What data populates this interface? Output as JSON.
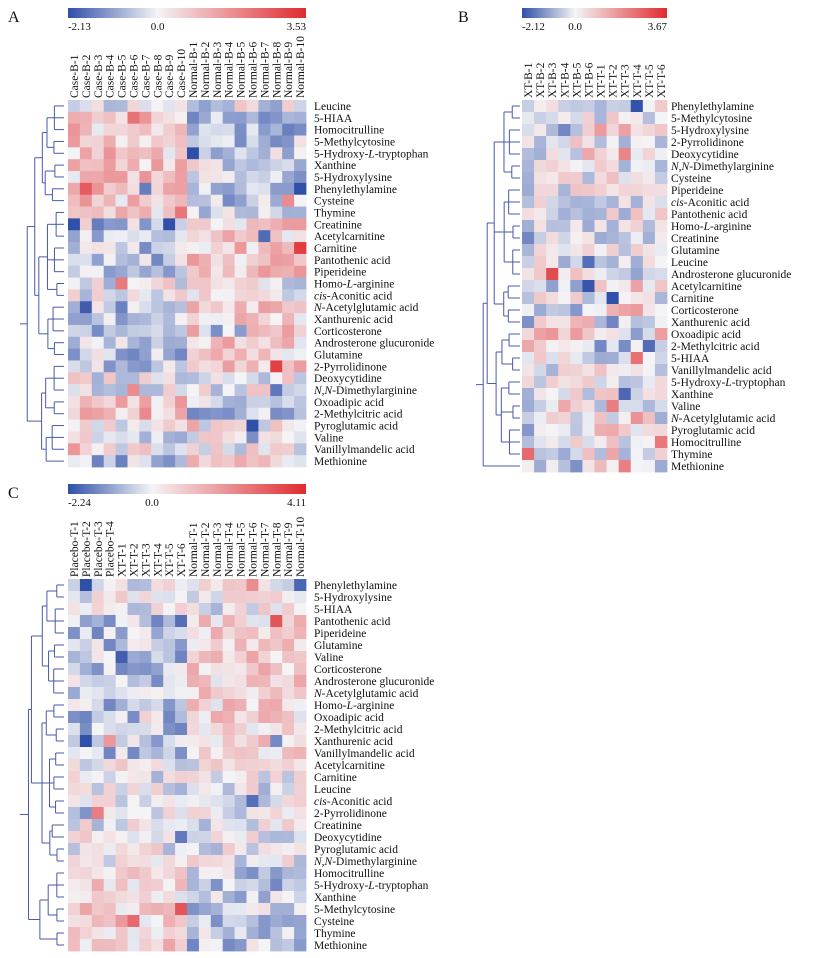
{
  "colors": {
    "low": "#2f4fa8",
    "mid": "#f4f4f6",
    "high": "#e02a2e",
    "dendrogram": "#4a5aa8"
  },
  "chart_data": [
    {
      "type": "heatmap",
      "panel_label": "A",
      "scale": {
        "min": -2.13,
        "mid": 0.0,
        "max": 3.53,
        "min_label": "-2.13",
        "mid_label": "0.0",
        "max_label": "3.53"
      },
      "columns": [
        "Case-B-1",
        "Case-B-2",
        "Case-B-3",
        "Case-B-4",
        "Case-B-5",
        "Case-B-6",
        "Case-B-7",
        "Case-B-8",
        "Case-B-9",
        "Case-B-10",
        "Normal-B-1",
        "Normal-B-2",
        "Normal-B-3",
        "Normal-B-4",
        "Normal-B-5",
        "Normal-B-6",
        "Normal-B-7",
        "Normal-B-8",
        "Normal-B-9",
        "Normal-B-10"
      ],
      "rows": [
        "Leucine",
        "5-HIAA",
        "Homocitrulline",
        "5-Methylcytosine",
        "5-Hydroxy-L-tryptophan",
        "Xanthine",
        "5-Hydroxylysine",
        "Phenylethylamine",
        "Cysteine",
        "Thymine",
        "Creatinine",
        "Acetylcarnitine",
        "Carnitine",
        "Pantothenic acid",
        "Piperideine",
        "Homo-L-arginine",
        "cis-Aconitic acid",
        "N-Acetylglutamic acid",
        "Xanthurenic acid",
        "Corticosterone",
        "Androsterone glucuronide",
        "Glutamine",
        "2-Pyrrolidinone",
        "Deoxycytidine",
        "N,N-Dimethylarginine",
        "Oxoadipic acid",
        "2-Methylcitric acid",
        "Pyroglutamic acid",
        "Valine",
        "Vanillylmandelic acid",
        "Methionine"
      ],
      "pattern": {
        "group_split": 10,
        "seed": 11,
        "up_in_first": [
          "5-HIAA",
          "Homocitrulline",
          "5-Methylcytosine",
          "5-Hydroxy-L-tryptophan",
          "Xanthine",
          "5-Hydroxylysine",
          "Phenylethylamine",
          "Cysteine",
          "Thymine",
          "Oxoadipic acid",
          "2-Methylcitric acid"
        ],
        "up_in_second": [
          "Creatinine",
          "Acetylcarnitine",
          "Carnitine",
          "Pantothenic acid",
          "Piperideine",
          "N-Acetylglutamic acid",
          "Xanthurenic acid",
          "Corticosterone",
          "Androsterone glucuronide",
          "Glutamine",
          "2-Pyrrolidinone",
          "Methionine"
        ]
      },
      "italic_prefixes": {
        "5-Hydroxy-L-tryptophan": [
          "5-Hydroxy-",
          "L",
          "-tryptophan"
        ],
        "Homo-L-arginine": [
          "Homo-",
          "L",
          "-arginine"
        ],
        "cis-Aconitic acid": [
          "",
          "cis",
          "-Aconitic acid"
        ],
        "N-Acetylglutamic acid": [
          "",
          "N",
          "-Acetylglutamic acid"
        ],
        "N,N-Dimethylarginine": [
          "",
          "N,N",
          "-Dimethylarginine"
        ]
      }
    },
    {
      "type": "heatmap",
      "panel_label": "B",
      "scale": {
        "min": -2.12,
        "mid": 0.0,
        "max": 3.67,
        "min_label": "-2.12",
        "mid_label": "0.0",
        "max_label": "3.67"
      },
      "columns": [
        "XT-B-1",
        "XT-B-2",
        "XT-B-3",
        "XT-B-4",
        "XT-B-5",
        "XT-B-6",
        "XT-T-1",
        "XT-T-2",
        "XT-T-3",
        "XT-T-4",
        "XT-T-5",
        "XT-T-6"
      ],
      "rows": [
        "Phenylethylamine",
        "5-Methylcytosine",
        "5-Hydroxylysine",
        "2-Pyrrolidinone",
        "Deoxycytidine",
        "N,N-Dimethylarginine",
        "Cysteine",
        "Piperideine",
        "cis-Aconitic acid",
        "Pantothenic acid",
        "Homo-L-arginine",
        "Creatinine",
        "Glutamine",
        "Leucine",
        "Androsterone glucuronide",
        "Acetylcarnitine",
        "Carnitine",
        "Corticosterone",
        "Xanthurenic acid",
        "Oxoadipic acid",
        "2-Methylcitric acid",
        "5-HIAA",
        "Vanillylmandelic acid",
        "5-Hydroxy-L-tryptophan",
        "Xanthine",
        "Valine",
        "N-Acetylglutamic acid",
        "Pyroglutamic acid",
        "Homocitrulline",
        "Thymine",
        "Methionine"
      ],
      "pattern": {
        "group_split": 6,
        "seed": 23,
        "up_in_first": [
          "Androsterone glucuronide",
          "Xanthurenic acid",
          "Oxoadipic acid",
          "2-Methylcitric acid"
        ],
        "up_in_second": [
          "5-Hydroxylysine",
          "Acetylcarnitine",
          "Corticosterone",
          "Pyroglutamic acid",
          "Methionine"
        ]
      },
      "italic_prefixes": {
        "5-Hydroxy-L-tryptophan": [
          "5-Hydroxy-",
          "L",
          "-tryptophan"
        ],
        "Homo-L-arginine": [
          "Homo-",
          "L",
          "-arginine"
        ],
        "cis-Aconitic acid": [
          "",
          "cis",
          "-Aconitic acid"
        ],
        "N-Acetylglutamic acid": [
          "",
          "N",
          "-Acetylglutamic acid"
        ],
        "N,N-Dimethylarginine": [
          "",
          "N,N",
          "-Dimethylarginine"
        ]
      }
    },
    {
      "type": "heatmap",
      "panel_label": "C",
      "scale": {
        "min": -2.24,
        "mid": 0.0,
        "max": 4.11,
        "min_label": "-2.24",
        "mid_label": "0.0",
        "max_label": "4.11"
      },
      "columns": [
        "Placebo-T-1",
        "Placebo-T-2",
        "Placebo-T-3",
        "Placebo-T-4",
        "XT-T-1",
        "XT-T-2",
        "XT-T-3",
        "XT-T-4",
        "XT-T-5",
        "XT-T-6",
        "Normal-T-1",
        "Normal-T-2",
        "Normal-T-3",
        "Normal-T-4",
        "Normal-T-5",
        "Normal-T-6",
        "Normal-T-7",
        "Normal-T-8",
        "Normal-T-9",
        "Normal-T-10"
      ],
      "rows": [
        "Phenylethylamine",
        "5-Hydroxylysine",
        "5-HIAA",
        "Pantothenic acid",
        "Piperideine",
        "Glutamine",
        "Valine",
        "Corticosterone",
        "Androsterone glucuronide",
        "N-Acetylglutamic acid",
        "Homo-L-arginine",
        "Oxoadipic acid",
        "2-Methylcitric acid",
        "Xanthurenic acid",
        "Vanillylmandelic acid",
        "Acetylcarnitine",
        "Carnitine",
        "Leucine",
        "cis-Aconitic acid",
        "2-Pyrrolidinone",
        "Creatinine",
        "Deoxycytidine",
        "Pyroglutamic acid",
        "N,N-Dimethylarginine",
        "Homocitrulline",
        "5-Hydroxy-L-tryptophan",
        "Xanthine",
        "5-Methylcytosine",
        "Cysteine",
        "Thymine",
        "Methionine"
      ],
      "pattern": {
        "group_split": 10,
        "seed": 37,
        "up_in_first": [
          "Homocitrulline",
          "5-Hydroxy-L-tryptophan",
          "Xanthine",
          "5-Methylcytosine",
          "Cysteine",
          "Thymine",
          "Methionine"
        ],
        "up_in_second": [
          "Pantothenic acid",
          "Piperideine",
          "Glutamine",
          "Valine",
          "Corticosterone",
          "Androsterone glucuronide",
          "N-Acetylglutamic acid",
          "Homo-L-arginine",
          "Oxoadipic acid",
          "2-Methylcitric acid",
          "Xanthurenic acid",
          "Vanillylmandelic acid"
        ]
      },
      "italic_prefixes": {
        "5-Hydroxy-L-tryptophan": [
          "5-Hydroxy-",
          "L",
          "-tryptophan"
        ],
        "Homo-L-arginine": [
          "Homo-",
          "L",
          "-arginine"
        ],
        "cis-Aconitic acid": [
          "",
          "cis",
          "-Aconitic acid"
        ],
        "N-Acetylglutamic acid": [
          "",
          "N",
          "-Acetylglutamic acid"
        ],
        "N,N-Dimethylarginine": [
          "",
          "N,N",
          "-Dimethylarginine"
        ]
      }
    }
  ]
}
